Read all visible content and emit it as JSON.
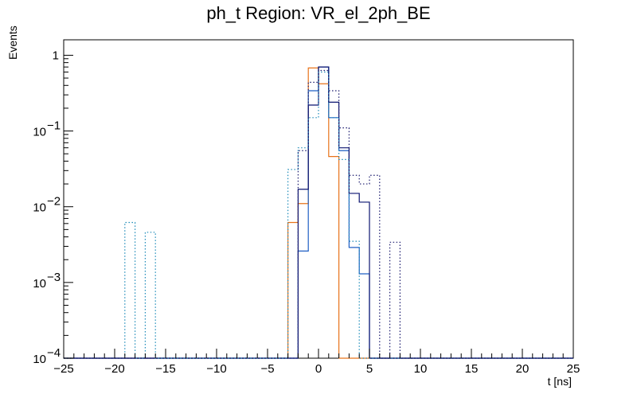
{
  "chart_data": {
    "type": "histogram",
    "title": "ph_t Region: VR_el_2ph_BE",
    "xlabel": "t [ns]",
    "ylabel": "Events",
    "x_range": [
      -25,
      25
    ],
    "y_range": [
      0.0001,
      1.6
    ],
    "y_scale": "log",
    "bin_width": 1,
    "grid": false,
    "x_ticks": [
      "-25",
      "-20",
      "-15",
      "-10",
      "-5",
      "0",
      "5",
      "10",
      "15",
      "20",
      "25"
    ],
    "y_ticks": [
      {
        "base": "10",
        "exp": "-4"
      },
      {
        "base": "10",
        "exp": "-3"
      },
      {
        "base": "10",
        "exp": "-2"
      },
      {
        "base": "10",
        "exp": "-1"
      },
      {
        "base": "1",
        "exp": ""
      }
    ],
    "series": [
      {
        "style": "solid",
        "color": "#e8731a",
        "bins": [
          [
            -3,
            0.0062
          ],
          [
            -2,
            0.011
          ],
          [
            -1,
            0.68
          ],
          [
            0,
            0.42
          ],
          [
            1,
            0.046
          ]
        ]
      },
      {
        "style": "solid",
        "color": "#1f5fc4",
        "bins": [
          [
            -2,
            0.0026
          ],
          [
            -1,
            0.34
          ],
          [
            0,
            0.7
          ],
          [
            1,
            0.15
          ],
          [
            2,
            0.055
          ],
          [
            3,
            0.0029
          ],
          [
            4,
            0.0013
          ]
        ]
      },
      {
        "style": "solid",
        "color": "#0b1470",
        "bins": [
          [
            -2,
            0.017
          ],
          [
            -1,
            0.22
          ],
          [
            0,
            0.7
          ],
          [
            1,
            0.24
          ],
          [
            2,
            0.06
          ],
          [
            3,
            0.015
          ],
          [
            4,
            0.0115
          ]
        ]
      },
      {
        "style": "dotted",
        "color": "#1c8ab8",
        "bins": [
          [
            -19,
            0.0062
          ],
          [
            -17,
            0.0046
          ],
          [
            -3,
            0.031
          ],
          [
            -2,
            0.06
          ],
          [
            -1,
            0.15
          ],
          [
            0,
            0.6
          ],
          [
            1,
            0.15
          ],
          [
            2,
            0.042
          ],
          [
            3,
            0.0035
          ]
        ]
      },
      {
        "style": "dotted",
        "color": "#1a1a6e",
        "bins": [
          [
            -2,
            0.055
          ],
          [
            -1,
            0.44
          ],
          [
            0,
            0.63
          ],
          [
            1,
            0.34
          ],
          [
            2,
            0.11
          ],
          [
            3,
            0.026
          ],
          [
            4,
            0.02
          ],
          [
            5,
            0.026
          ],
          [
            7,
            0.0034
          ]
        ]
      }
    ]
  }
}
